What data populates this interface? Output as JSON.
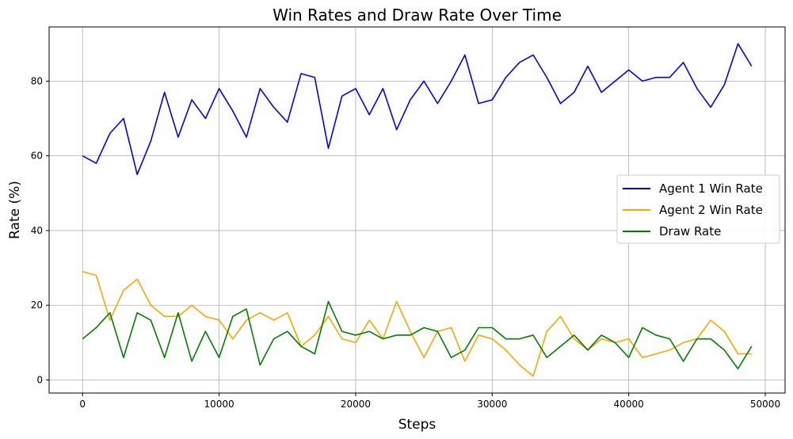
{
  "chart_data": {
    "type": "line",
    "title": "Win Rates and Draw Rate Over Time",
    "xlabel": "Steps",
    "ylabel": "Rate (%)",
    "xlim": [
      -2450,
      51450
    ],
    "ylim": [
      -3.5,
      94.5
    ],
    "xticks": [
      0,
      10000,
      20000,
      30000,
      40000,
      50000
    ],
    "yticks": [
      0,
      20,
      40,
      60,
      80
    ],
    "grid": true,
    "legend_position": "center-right",
    "x": [
      0,
      1000,
      2000,
      3000,
      4000,
      5000,
      6000,
      7000,
      8000,
      9000,
      10000,
      11000,
      12000,
      13000,
      14000,
      15000,
      16000,
      17000,
      18000,
      19000,
      20000,
      21000,
      22000,
      23000,
      24000,
      25000,
      26000,
      27000,
      28000,
      29000,
      30000,
      31000,
      32000,
      33000,
      34000,
      35000,
      36000,
      37000,
      38000,
      39000,
      40000,
      41000,
      42000,
      43000,
      44000,
      45000,
      46000,
      47000,
      48000,
      49000
    ],
    "series": [
      {
        "name": "Agent 1 Win Rate",
        "color": "#0000ff",
        "values": [
          60,
          58,
          66,
          70,
          55,
          64,
          77,
          65,
          75,
          70,
          78,
          72,
          65,
          78,
          73,
          69,
          82,
          81,
          62,
          76,
          78,
          71,
          78,
          67,
          75,
          80,
          74,
          80,
          87,
          74,
          75,
          81,
          85,
          87,
          81,
          74,
          77,
          84,
          77,
          80,
          83,
          80,
          81,
          81,
          85,
          78,
          73,
          79,
          90,
          84
        ]
      },
      {
        "name": "Agent 2 Win Rate",
        "color": "#ffa500",
        "values": [
          29,
          28,
          16,
          24,
          27,
          20,
          17,
          17,
          20,
          17,
          16,
          11,
          16,
          18,
          16,
          18,
          9,
          12,
          17,
          11,
          10,
          16,
          11,
          21,
          13,
          6,
          13,
          14,
          5,
          12,
          11,
          8,
          4,
          1,
          13,
          17,
          11,
          8,
          11,
          10,
          11,
          6,
          7,
          8,
          10,
          11,
          16,
          13,
          7,
          7
        ]
      },
      {
        "name": "Draw Rate",
        "color": "#008000",
        "values": [
          11,
          14,
          18,
          6,
          18,
          16,
          6,
          18,
          5,
          13,
          6,
          17,
          19,
          4,
          11,
          13,
          9,
          7,
          21,
          13,
          12,
          13,
          11,
          12,
          12,
          14,
          13,
          6,
          8,
          14,
          14,
          11,
          11,
          12,
          6,
          9,
          12,
          8,
          12,
          10,
          6,
          14,
          12,
          11,
          5,
          11,
          11,
          8,
          3,
          9
        ]
      }
    ]
  }
}
